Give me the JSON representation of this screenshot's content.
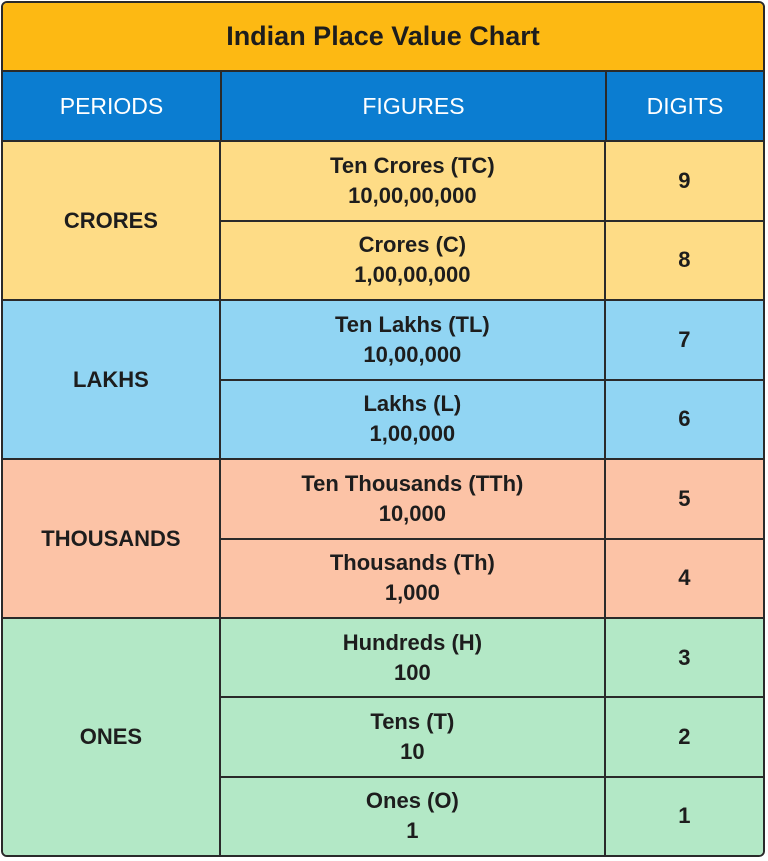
{
  "title": "Indian Place Value Chart",
  "headers": {
    "periods": "PERIODS",
    "figures": "FIGURES",
    "digits": "DIGITS"
  },
  "colors": {
    "title_bg": "#FDB913",
    "header_bg": "#0B7DD1",
    "crores_bg": "#FEDC86",
    "lakhs_bg": "#91D5F3",
    "thousands_bg": "#FCC3A6",
    "ones_bg": "#B3E8C6"
  },
  "groups": [
    {
      "period": "CRORES",
      "rows": [
        {
          "name": "Ten Crores (TC)",
          "value": "10,00,00,000",
          "digits": "9"
        },
        {
          "name": "Crores (C)",
          "value": "1,00,00,000",
          "digits": "8"
        }
      ]
    },
    {
      "period": "LAKHS",
      "rows": [
        {
          "name": "Ten Lakhs (TL)",
          "value": "10,00,000",
          "digits": "7"
        },
        {
          "name": "Lakhs (L)",
          "value": "1,00,000",
          "digits": "6"
        }
      ]
    },
    {
      "period": "THOUSANDS",
      "rows": [
        {
          "name": "Ten Thousands (TTh)",
          "value": "10,000",
          "digits": "5"
        },
        {
          "name": "Thousands (Th)",
          "value": "1,000",
          "digits": "4"
        }
      ]
    },
    {
      "period": "ONES",
      "rows": [
        {
          "name": "Hundreds (H)",
          "value": "100",
          "digits": "3"
        },
        {
          "name": "Tens (T)",
          "value": "10",
          "digits": "2"
        },
        {
          "name": "Ones (O)",
          "value": "1",
          "digits": "1"
        }
      ]
    }
  ]
}
